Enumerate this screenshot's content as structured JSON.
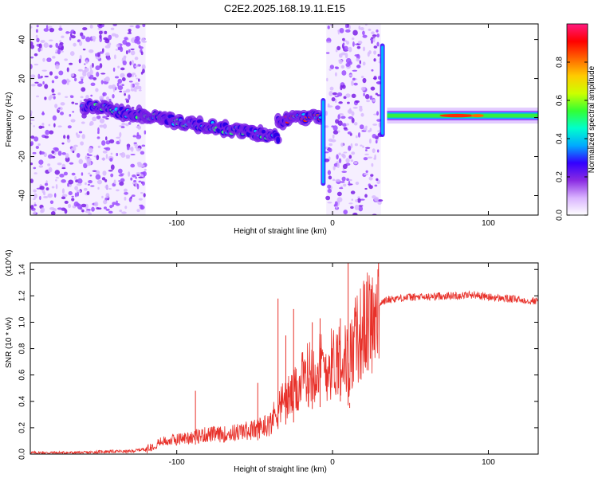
{
  "title": "C2E2.2025.168.19.11.E15",
  "chart_data": [
    {
      "type": "heatmap",
      "xlabel": "Height of straight line (km)",
      "ylabel": "Frequency (Hz)",
      "xlim": [
        -194,
        132
      ],
      "ylim": [
        -50,
        48
      ],
      "xticks": [
        -100,
        0,
        100
      ],
      "yticks": [
        -40,
        -20,
        0,
        20,
        40
      ],
      "colorbar": {
        "label": "Normalized spectral amplitude",
        "range": [
          0,
          1
        ],
        "ticks": [
          0.0,
          0.2,
          0.4,
          0.6,
          0.8
        ],
        "colors": [
          "#ffffff",
          "#d9b3ff",
          "#8a2be2",
          "#3300ff",
          "#00aaff",
          "#00ffcc",
          "#33ff33",
          "#ccff00",
          "#ffcc00",
          "#ff6600",
          "#ff0000",
          "#ff1a80"
        ]
      },
      "broadband_regions": [
        {
          "x": [
            -194,
            -120
          ],
          "y": [
            -50,
            48
          ],
          "level": 0.25
        },
        {
          "x": [
            -4,
            31
          ],
          "y": [
            -50,
            48
          ],
          "level": 0.25
        }
      ],
      "tone_segments": [
        {
          "x": [
            -160,
            -35
          ],
          "freq": [
            6,
            -10
          ],
          "level": 0.5
        },
        {
          "x": [
            -35,
            -7
          ],
          "freq": [
            -2,
            1
          ],
          "level": 0.8
        },
        {
          "x": [
            35,
            132
          ],
          "freq": [
            1,
            1
          ],
          "level": 0.7
        }
      ],
      "features": [
        {
          "x": -6,
          "y": [
            -35,
            10
          ]
        },
        {
          "x": 32,
          "y": [
            -10,
            38
          ]
        }
      ]
    },
    {
      "type": "line",
      "xlabel": "Height of straight line (km)",
      "ylabel": "SNR (10 * v/v)",
      "multiplier": "(x10^4)",
      "xlim": [
        -194,
        132
      ],
      "ylim": [
        0,
        1.45
      ],
      "xticks": [
        -100,
        0,
        100
      ],
      "yticks": [
        0.0,
        0.2,
        0.4,
        0.6,
        0.8,
        1.0,
        1.2,
        1.4
      ],
      "color": "#e8312a",
      "x": [
        -194,
        -180,
        -160,
        -145,
        -130,
        -120,
        -110,
        -100,
        -90,
        -80,
        -70,
        -60,
        -50,
        -40,
        -35,
        -30,
        -25,
        -20,
        -15,
        -10,
        -5,
        0,
        5,
        10,
        15,
        20,
        25,
        30,
        35,
        40,
        50,
        60,
        70,
        80,
        90,
        100,
        110,
        120,
        132
      ],
      "y": [
        0.01,
        0.01,
        0.01,
        0.02,
        0.02,
        0.04,
        0.1,
        0.12,
        0.14,
        0.16,
        0.16,
        0.18,
        0.2,
        0.25,
        0.38,
        0.45,
        0.48,
        0.58,
        0.66,
        0.72,
        0.7,
        0.74,
        0.8,
        0.74,
        0.92,
        1.02,
        1.1,
        1.14,
        1.17,
        1.18,
        1.19,
        1.19,
        1.2,
        1.2,
        1.21,
        1.19,
        1.18,
        1.17,
        1.16
      ],
      "spikes": [
        {
          "x": -35,
          "y": 1.18
        },
        {
          "x": -30,
          "y": 0.9
        },
        {
          "x": -25,
          "y": 1.1
        },
        {
          "x": -13,
          "y": 1.0
        },
        {
          "x": -8,
          "y": 1.03
        },
        {
          "x": 5,
          "y": 1.03
        },
        {
          "x": 10,
          "y": 1.45
        },
        {
          "x": 11,
          "y": 0.35
        },
        {
          "x": -88,
          "y": 0.48
        },
        {
          "x": -48,
          "y": 0.54
        }
      ]
    }
  ]
}
